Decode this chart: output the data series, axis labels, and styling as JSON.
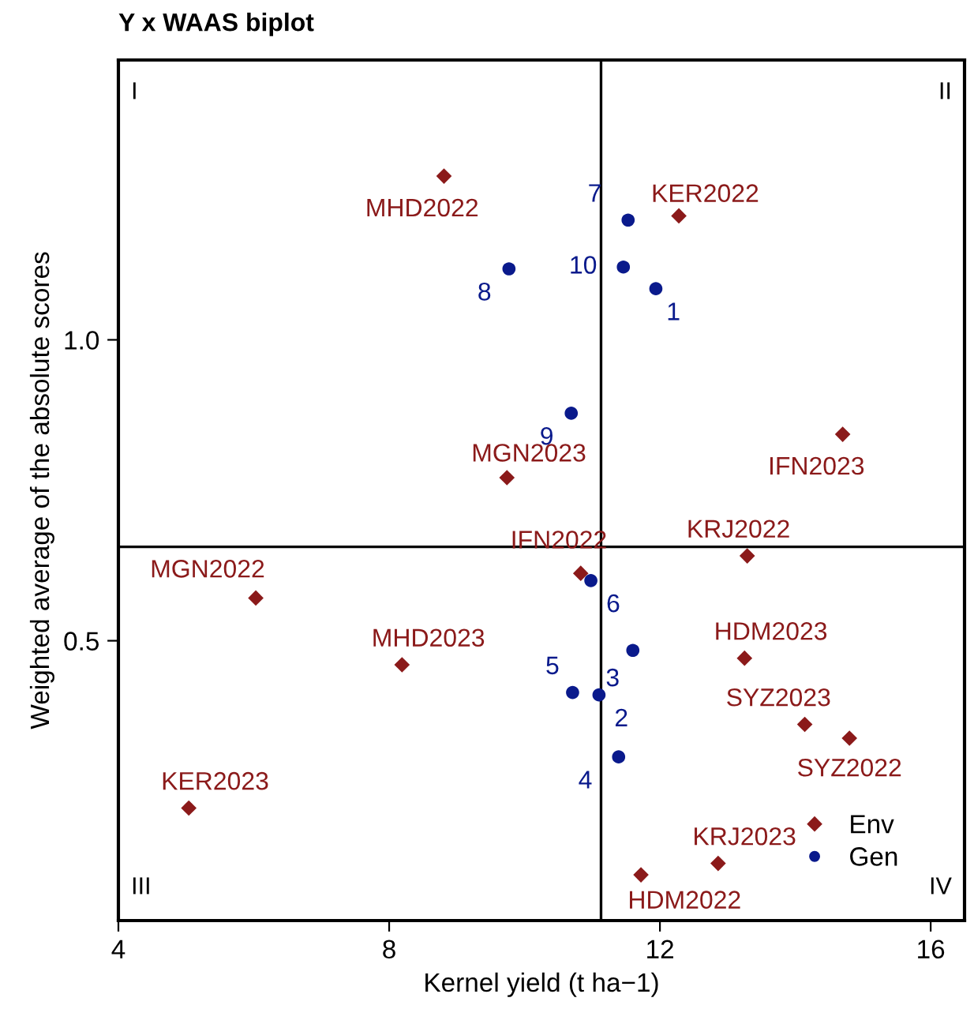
{
  "chart_data": {
    "type": "scatter",
    "title": "Y x WAAS biplot",
    "xlabel": "Kernel yield (t ha−1)",
    "ylabel": "Weighted average of the absolute scores",
    "xlim": [
      4,
      16.5
    ],
    "ylim": [
      0.035,
      1.465
    ],
    "xticks": [
      4,
      8,
      12,
      16
    ],
    "yticks": [
      {
        "value": 0.5,
        "label": "0.5"
      },
      {
        "value": 1.0,
        "label": "1.0"
      }
    ],
    "grid": false,
    "legend": "bottom right",
    "ref_lines": [
      {
        "axis": "x",
        "value": 11.13,
        "color": "#000000"
      },
      {
        "axis": "y",
        "value": 0.656,
        "color": "#000000"
      }
    ],
    "series": [
      {
        "name": "Env",
        "color": "#8b1a1a",
        "marker": "diamond",
        "x": [
          8.81,
          12.28,
          9.74,
          14.7,
          13.29,
          10.83,
          6.03,
          8.19,
          13.25,
          14.14,
          14.8,
          5.04,
          12.86,
          11.72
        ],
        "values": [
          1.272,
          1.206,
          0.771,
          0.843,
          0.641,
          0.612,
          0.571,
          0.46,
          0.471,
          0.361,
          0.338,
          0.222,
          0.13,
          0.111
        ]
      },
      {
        "name": "Gen",
        "color": "#0a1a8c",
        "marker": "circle",
        "x": [
          11.53,
          11.46,
          11.94,
          9.77,
          10.69,
          10.98,
          11.6,
          10.71,
          11.1,
          11.39
        ],
        "values": [
          1.199,
          1.121,
          1.085,
          1.118,
          0.878,
          0.6,
          0.484,
          0.414,
          0.41,
          0.307
        ]
      }
    ],
    "annotations": [
      {
        "text": "MHD2022",
        "x": 8.81,
        "y": 1.272
      },
      {
        "text": "KER2022",
        "x": 12.28,
        "y": 1.206
      },
      {
        "text": "MGN2023",
        "x": 9.74,
        "y": 0.771
      },
      {
        "text": "IFN2023",
        "x": 14.7,
        "y": 0.843
      },
      {
        "text": "KRJ2022",
        "x": 13.29,
        "y": 0.641
      },
      {
        "text": "IFN2022",
        "x": 10.83,
        "y": 0.612
      },
      {
        "text": "MGN2022",
        "x": 6.03,
        "y": 0.571
      },
      {
        "text": "MHD2023",
        "x": 8.19,
        "y": 0.46
      },
      {
        "text": "HDM2023",
        "x": 13.25,
        "y": 0.471
      },
      {
        "text": "SYZ2023",
        "x": 14.14,
        "y": 0.361
      },
      {
        "text": "SYZ2022",
        "x": 14.8,
        "y": 0.338
      },
      {
        "text": "KER2023",
        "x": 5.04,
        "y": 0.222
      },
      {
        "text": "KRJ2023",
        "x": 12.86,
        "y": 0.13
      },
      {
        "text": "HDM2022",
        "x": 11.72,
        "y": 0.111
      },
      {
        "text": "7",
        "x": 11.53,
        "y": 1.199
      },
      {
        "text": "10",
        "x": 11.46,
        "y": 1.121
      },
      {
        "text": "1",
        "x": 11.94,
        "y": 1.085
      },
      {
        "text": "8",
        "x": 9.77,
        "y": 1.118
      },
      {
        "text": "9",
        "x": 10.69,
        "y": 0.878
      },
      {
        "text": "6",
        "x": 10.98,
        "y": 0.6
      },
      {
        "text": "3",
        "x": 11.6,
        "y": 0.484
      },
      {
        "text": "5",
        "x": 10.71,
        "y": 0.414
      },
      {
        "text": "2",
        "x": 11.1,
        "y": 0.41
      },
      {
        "text": "4",
        "x": 11.39,
        "y": 0.307
      },
      "I",
      "II",
      "III",
      "IV"
    ]
  }
}
